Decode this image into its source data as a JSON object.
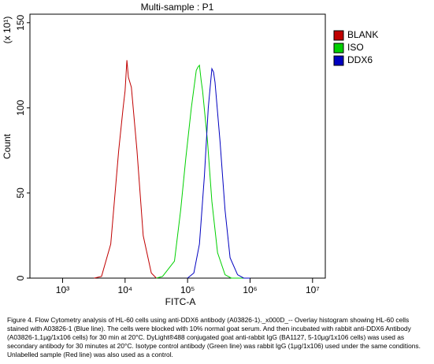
{
  "chart_data": {
    "type": "line",
    "title": "Multi-sample : P1",
    "x_label": "FITC-A",
    "y_label": "Count",
    "y_unit_label": "(x 10¹)",
    "log_x": true,
    "legend": "right",
    "xlim": [
      300,
      16000000
    ],
    "xticks": [
      {
        "value": 1000,
        "label": "10³"
      },
      {
        "value": 10000,
        "label": "10⁴"
      },
      {
        "value": 100000,
        "label": "10⁵"
      },
      {
        "value": 1000000,
        "label": "10⁶"
      },
      {
        "value": 10000000,
        "label": "10⁷"
      }
    ],
    "ylim": [
      0,
      155
    ],
    "yticks": [
      0,
      50,
      100,
      150
    ],
    "series": [
      {
        "name": "BLANK",
        "color": "#c00000",
        "x": [
          3200,
          4200,
          5900,
          7900,
          9300,
          10000,
          10700,
          11300,
          12600,
          15500,
          19500,
          26300,
          31600
        ],
        "values": [
          0,
          1,
          20,
          75,
          100,
          110,
          128,
          118,
          112,
          75,
          25,
          3,
          0
        ]
      },
      {
        "name": "ISO",
        "color": "#00d000",
        "x": [
          31600,
          39800,
          61700,
          77600,
          93300,
          114800,
          138000,
          147000,
          155000,
          165000,
          174000,
          209000,
          245000,
          302000,
          398000,
          501000,
          794000
        ],
        "values": [
          0,
          1,
          10,
          40,
          70,
          100,
          122,
          124,
          125,
          116,
          110,
          80,
          45,
          15,
          2,
          0,
          0
        ]
      },
      {
        "name": "DDX6",
        "color": "#0000c0",
        "x": [
          100000,
          126000,
          155000,
          186000,
          214000,
          245000,
          260000,
          275000,
          331000,
          398000,
          479000,
          631000,
          794000,
          1000000
        ],
        "values": [
          0,
          3,
          20,
          60,
          100,
          123,
          121,
          115,
          80,
          40,
          12,
          2,
          0,
          0
        ]
      }
    ]
  },
  "caption": "Figure 4. Flow Cytometry analysis of HL-60 cells using anti-DDX6 antibody (A03826-1)._x000D_-- Overlay histogram showing HL-60 cells stained with A03826-1 (Blue line). The cells were blocked with 10% normal goat serum. And then incubated with rabbit anti-DDX6 Antibody (A03826-1,1μg/1x106 cells) for 30 min at 20°C. DyLight®488 conjugated goat anti-rabbit IgG (BA1127, 5-10μg/1x106 cells) was used as secondary antibody for 30 minutes at 20°C. Isotype control antibody (Green line) was rabbit IgG (1μg/1x106) used under the same conditions. Unlabelled sample (Red line) was also used as a control."
}
